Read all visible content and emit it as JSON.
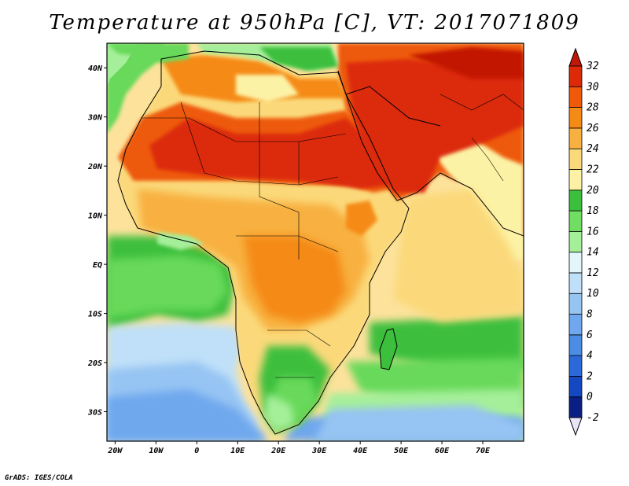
{
  "title": "Temperature at 950hPa [C], VT: 2017071809",
  "credit": "GrADS: IGES/COLA",
  "map": {
    "lon_range": [
      -22,
      80
    ],
    "lat_range": [
      -36,
      45
    ],
    "lat_ticks": [
      {
        "value": 40,
        "label": "40N"
      },
      {
        "value": 30,
        "label": "30N"
      },
      {
        "value": 20,
        "label": "20N"
      },
      {
        "value": 10,
        "label": "10N"
      },
      {
        "value": 0,
        "label": "EQ"
      },
      {
        "value": -10,
        "label": "10S"
      },
      {
        "value": -20,
        "label": "20S"
      },
      {
        "value": -30,
        "label": "30S"
      }
    ],
    "lon_ticks": [
      {
        "value": -20,
        "label": "20W"
      },
      {
        "value": -10,
        "label": "10W"
      },
      {
        "value": 0,
        "label": "0"
      },
      {
        "value": 10,
        "label": "10E"
      },
      {
        "value": 20,
        "label": "20E"
      },
      {
        "value": 30,
        "label": "30E"
      },
      {
        "value": 40,
        "label": "40E"
      },
      {
        "value": 50,
        "label": "50E"
      },
      {
        "value": 60,
        "label": "60E"
      },
      {
        "value": 70,
        "label": "70E"
      }
    ]
  },
  "colorbar": {
    "levels": [
      -2,
      0,
      2,
      4,
      6,
      8,
      10,
      12,
      14,
      16,
      18,
      20,
      22,
      24,
      26,
      28,
      30,
      32
    ],
    "colors": [
      "#0a1f84",
      "#1448c2",
      "#2c69d8",
      "#4a8ce6",
      "#6fa8ee",
      "#96c4f3",
      "#bfe0f8",
      "#e4f7f8",
      "#a5ef9a",
      "#6fde62",
      "#3cbf3c",
      "#fcf2a5",
      "#fbd97a",
      "#f8b040",
      "#f58a16",
      "#ee5a0a",
      "#dc2a08"
    ],
    "under_color": "#e8e4fa",
    "over_color": "#c21706"
  },
  "colors": {
    "ocean_warm": "#fde29c",
    "ocean_mid": "#67d95a",
    "ocean_cool": "#9ac6f2",
    "ocean_cold": "#6ea6ea",
    "coast": "#000000"
  }
}
